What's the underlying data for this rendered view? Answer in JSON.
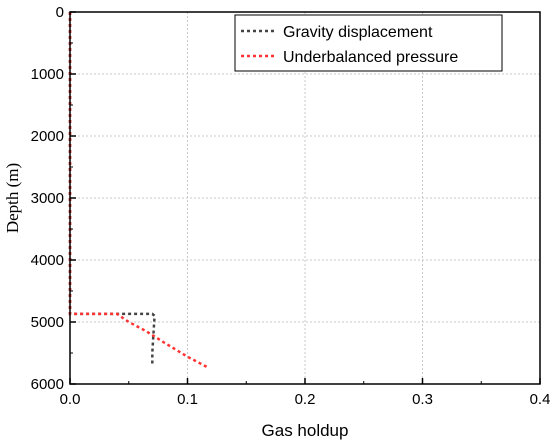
{
  "chart_data": {
    "type": "line",
    "xlabel": "Gas holdup",
    "ylabel": "Depth (m)",
    "xlim": [
      0.0,
      0.4
    ],
    "ylim": [
      0,
      6000
    ],
    "y_inverted": true,
    "x_ticks": [
      "0.0",
      "0.1",
      "0.2",
      "0.3",
      "0.4"
    ],
    "y_ticks": [
      "0",
      "1000",
      "2000",
      "3000",
      "4000",
      "5000",
      "6000"
    ],
    "grid": true,
    "legend_position": "top-right",
    "series": [
      {
        "name": "Gravity displacement",
        "color": "#444444",
        "style": "dotted",
        "points": [
          [
            0.0,
            0
          ],
          [
            0.0,
            4870
          ],
          [
            0.07,
            4870
          ],
          [
            0.072,
            4900
          ],
          [
            0.071,
            5200
          ],
          [
            0.07,
            5500
          ],
          [
            0.07,
            5700
          ]
        ]
      },
      {
        "name": "Underbalanced pressure",
        "color": "#ff3333",
        "style": "dotted",
        "points": [
          [
            0.0,
            0
          ],
          [
            0.0,
            4870
          ],
          [
            0.04,
            4870
          ],
          [
            0.05,
            5000
          ],
          [
            0.065,
            5150
          ],
          [
            0.08,
            5330
          ],
          [
            0.1,
            5560
          ],
          [
            0.118,
            5740
          ]
        ]
      }
    ]
  }
}
